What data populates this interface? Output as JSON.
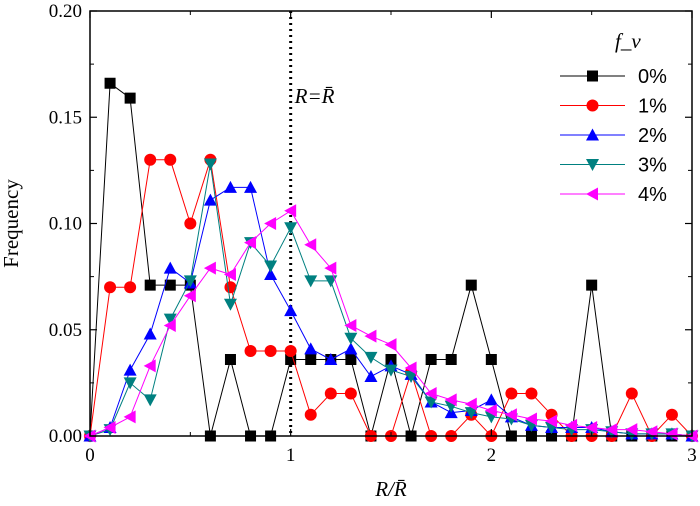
{
  "chart_data": {
    "type": "line",
    "xlabel": "R/R̄",
    "ylabel": "Frequency",
    "xlim": [
      0,
      3
    ],
    "ylim": [
      0,
      0.2
    ],
    "xticks": [
      0,
      1,
      2,
      3
    ],
    "xtick_labels": [
      "0",
      "1",
      "2",
      "3"
    ],
    "yticks": [
      0,
      0.05,
      0.1,
      0.15,
      0.2
    ],
    "ytick_labels": [
      "0.00",
      "0.05",
      "0.10",
      "0.15",
      "0.20"
    ],
    "reference_line": {
      "x": 1,
      "label": "R=R̄",
      "style": "dotted"
    },
    "legend_title": "f_v",
    "legend_position": "top-right",
    "series": [
      {
        "name": "0%",
        "marker": "square",
        "color": "#000000",
        "x": [
          0,
          0.1,
          0.2,
          0.3,
          0.4,
          0.5,
          0.6,
          0.7,
          0.8,
          0.9,
          1.0,
          1.1,
          1.2,
          1.3,
          1.4,
          1.5,
          1.6,
          1.7,
          1.8,
          1.9,
          2.0,
          2.1,
          2.2,
          2.3,
          2.4,
          2.5,
          2.6,
          2.7,
          2.8,
          2.9,
          3.0
        ],
        "y": [
          0,
          0.166,
          0.159,
          0.071,
          0.071,
          0.071,
          0,
          0.036,
          0,
          0,
          0.036,
          0.036,
          0.036,
          0.036,
          0,
          0.036,
          0,
          0.036,
          0.036,
          0.071,
          0.036,
          0,
          0,
          0,
          0,
          0.071,
          0,
          0,
          0,
          0,
          0
        ]
      },
      {
        "name": "1%",
        "marker": "circle",
        "color": "#ff0000",
        "x": [
          0,
          0.1,
          0.2,
          0.3,
          0.4,
          0.5,
          0.6,
          0.7,
          0.8,
          0.9,
          1.0,
          1.1,
          1.2,
          1.3,
          1.4,
          1.5,
          1.6,
          1.7,
          1.8,
          1.9,
          2.0,
          2.1,
          2.2,
          2.3,
          2.4,
          2.5,
          2.6,
          2.7,
          2.8,
          2.9,
          3.0
        ],
        "y": [
          0,
          0.07,
          0.07,
          0.13,
          0.13,
          0.1,
          0.13,
          0.07,
          0.04,
          0.04,
          0.04,
          0.01,
          0.02,
          0.02,
          0,
          0,
          0.03,
          0,
          0,
          0.01,
          0,
          0.02,
          0.02,
          0.01,
          0,
          0,
          0,
          0.02,
          0,
          0.01,
          0
        ]
      },
      {
        "name": "2%",
        "marker": "triangle-up",
        "color": "#0000ff",
        "x": [
          0,
          0.1,
          0.2,
          0.3,
          0.4,
          0.5,
          0.6,
          0.7,
          0.8,
          0.9,
          1.0,
          1.1,
          1.2,
          1.3,
          1.4,
          1.5,
          1.6,
          1.7,
          1.8,
          1.9,
          2.0,
          2.1,
          2.2,
          2.3,
          2.4,
          2.5,
          2.6,
          2.7,
          2.8,
          2.9,
          3.0
        ],
        "y": [
          0,
          0.004,
          0.031,
          0.048,
          0.079,
          0.072,
          0.111,
          0.117,
          0.117,
          0.076,
          0.059,
          0.041,
          0.036,
          0.041,
          0.028,
          0.033,
          0.029,
          0.016,
          0.011,
          0.012,
          0.017,
          0.009,
          0.005,
          0.004,
          0.004,
          0.004,
          0.002,
          0.001,
          0.001,
          0.001,
          0
        ]
      },
      {
        "name": "3%",
        "marker": "triangle-down",
        "color": "#008080",
        "x": [
          0,
          0.1,
          0.2,
          0.3,
          0.4,
          0.5,
          0.6,
          0.7,
          0.8,
          0.9,
          1.0,
          1.1,
          1.2,
          1.3,
          1.4,
          1.5,
          1.6,
          1.7,
          1.8,
          1.9,
          2.0,
          2.1,
          2.2,
          2.3,
          2.4,
          2.5,
          2.6,
          2.7,
          2.8,
          2.9,
          3.0
        ],
        "y": [
          0,
          0.003,
          0.025,
          0.017,
          0.055,
          0.073,
          0.128,
          0.062,
          0.091,
          0.08,
          0.098,
          0.073,
          0.073,
          0.046,
          0.037,
          0.031,
          0.028,
          0.016,
          0.014,
          0.011,
          0.009,
          0.008,
          0.005,
          0.004,
          0.003,
          0.003,
          0.002,
          0.001,
          0.001,
          0.001,
          0
        ]
      },
      {
        "name": "4%",
        "marker": "triangle-left",
        "color": "#ff00ff",
        "x": [
          0,
          0.1,
          0.2,
          0.3,
          0.4,
          0.5,
          0.6,
          0.7,
          0.8,
          0.9,
          1.0,
          1.1,
          1.2,
          1.3,
          1.4,
          1.5,
          1.6,
          1.7,
          1.8,
          1.9,
          2.0,
          2.1,
          2.2,
          2.3,
          2.4,
          2.5,
          2.6,
          2.7,
          2.8,
          2.9,
          3.0
        ],
        "y": [
          0,
          0.004,
          0.009,
          0.033,
          0.052,
          0.066,
          0.079,
          0.076,
          0.091,
          0.1,
          0.106,
          0.09,
          0.079,
          0.052,
          0.047,
          0.043,
          0.032,
          0.02,
          0.017,
          0.015,
          0.012,
          0.01,
          0.008,
          0.007,
          0.005,
          0.004,
          0.003,
          0.003,
          0.002,
          0.001,
          0
        ]
      }
    ]
  }
}
